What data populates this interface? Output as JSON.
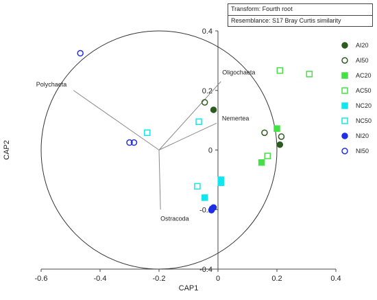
{
  "info": {
    "transform": "Transform: Fourth root",
    "resemblance": "Resemblance: S17 Bray Curtis similarity"
  },
  "chart_data": {
    "type": "scatter",
    "xlabel": "CAP1",
    "ylabel": "CAP2",
    "xlim": [
      -0.6,
      0.4
    ],
    "ylim": [
      -0.4,
      0.4
    ],
    "xticks": [
      -0.6,
      -0.4,
      -0.2,
      0,
      0.2,
      0.4
    ],
    "yticks": [
      -0.4,
      -0.2,
      0,
      0.2,
      0.4
    ],
    "xtick_labels": [
      "-0.6",
      "-0.4",
      "-0.2",
      "0",
      "0.2",
      "0.4"
    ],
    "ytick_labels": [
      "-0.4",
      "-0.2",
      "0",
      "0.2",
      "0.4"
    ],
    "grid": false,
    "legend_position": "right",
    "correlation_circle": {
      "center": [
        -0.2,
        0
      ],
      "radius": 0.4
    },
    "vectors": [
      {
        "label": "Polychaeta",
        "x": -0.49,
        "y": 0.2
      },
      {
        "label": "Oligochaeta",
        "x": 0.01,
        "y": 0.23
      },
      {
        "label": "Nemertea",
        "x": -0.005,
        "y": 0.09
      },
      {
        "label": "Ostracoda",
        "x": -0.195,
        "y": -0.2
      }
    ],
    "series": [
      {
        "name": "AI20",
        "marker": "circle",
        "filled": true,
        "color": "#2d5a1e",
        "points": [
          [
            -0.015,
            0.135
          ],
          [
            0.21,
            0.018
          ]
        ]
      },
      {
        "name": "AI50",
        "marker": "circle",
        "filled": false,
        "color": "#2d5a1e",
        "points": [
          [
            -0.045,
            0.16
          ],
          [
            0.158,
            0.058
          ],
          [
            0.215,
            0.045
          ]
        ]
      },
      {
        "name": "AC20",
        "marker": "square",
        "filled": true,
        "color": "#44e044",
        "points": [
          [
            0.2,
            0.072
          ],
          [
            0.148,
            -0.042
          ]
        ]
      },
      {
        "name": "AC50",
        "marker": "square",
        "filled": false,
        "color": "#44e044",
        "points": [
          [
            0.21,
            0.267
          ],
          [
            0.31,
            0.255
          ],
          [
            0.168,
            -0.02
          ]
        ]
      },
      {
        "name": "NC20",
        "marker": "square",
        "filled": true,
        "color": "#11e6ee",
        "points": [
          [
            0.01,
            -0.1
          ],
          [
            0.01,
            -0.11
          ],
          [
            -0.045,
            -0.16
          ]
        ]
      },
      {
        "name": "NC50",
        "marker": "square",
        "filled": false,
        "color": "#11e6ee",
        "points": [
          [
            -0.24,
            0.058
          ],
          [
            -0.065,
            0.095
          ],
          [
            -0.07,
            -0.122
          ]
        ]
      },
      {
        "name": "NI20",
        "marker": "circle",
        "filled": true,
        "color": "#1f2ee6",
        "points": [
          [
            -0.02,
            -0.197
          ],
          [
            -0.015,
            -0.193
          ],
          [
            -0.022,
            -0.202
          ]
        ]
      },
      {
        "name": "NI50",
        "marker": "circle",
        "filled": false,
        "color": "#1f2ee6",
        "points": [
          [
            -0.467,
            0.325
          ],
          [
            -0.3,
            0.025
          ],
          [
            -0.285,
            0.025
          ]
        ]
      }
    ]
  }
}
